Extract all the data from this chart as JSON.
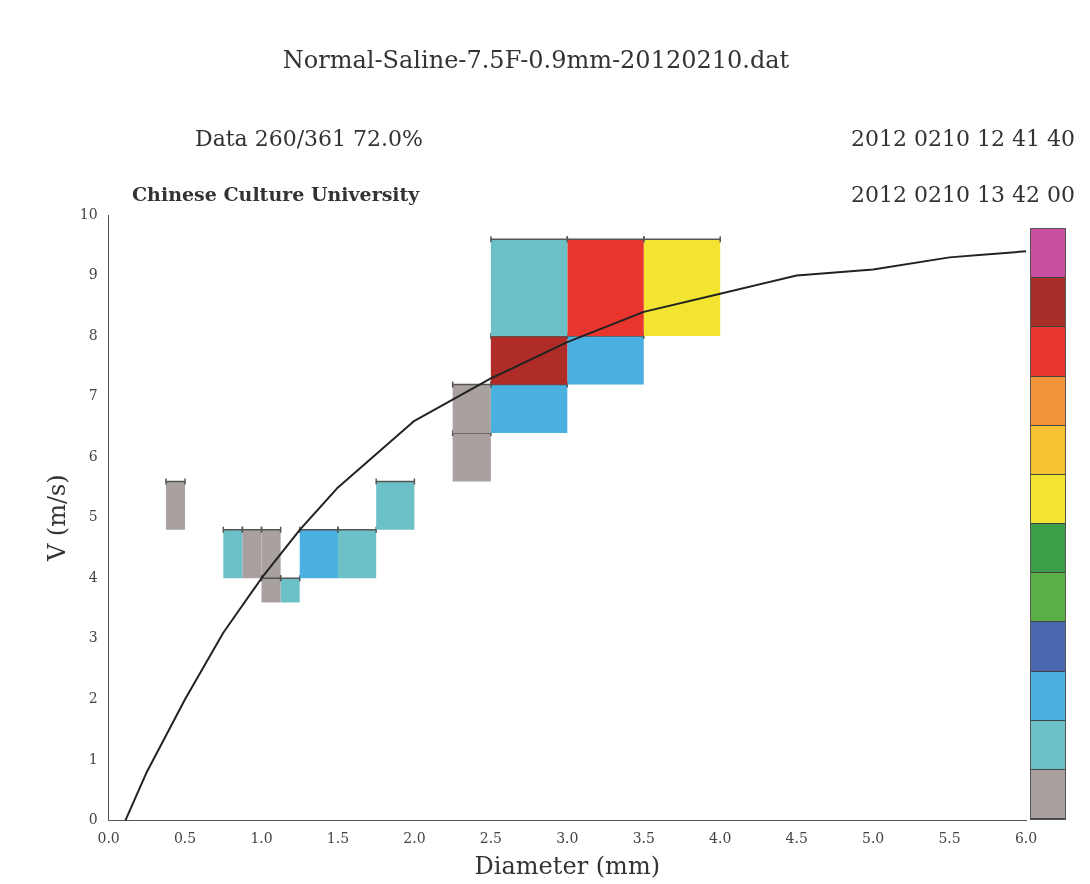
{
  "chart_data": {
    "type": "line",
    "title": "Normal-Saline-7.5F-0.9mm-20120210.dat",
    "xlabel": "Diameter (mm)",
    "ylabel": "V (m/s)",
    "annotations": [
      "Data 260/361 72.0%",
      "2012 0210 12 41 40",
      "Chinese Culture University",
      "2012 0210 13 42 00"
    ],
    "xlim": [
      0,
      6
    ],
    "ylim": [
      0,
      10
    ],
    "xticks": [
      {
        "value": 0,
        "label": "0.0"
      },
      {
        "value": 0.5,
        "label": "0.5"
      },
      {
        "value": 1,
        "label": "1.0"
      },
      {
        "value": 1.5,
        "label": "1.5"
      },
      {
        "value": 2,
        "label": "2.0"
      },
      {
        "value": 2.5,
        "label": "2.5"
      },
      {
        "value": 3,
        "label": "3.0"
      },
      {
        "value": 3.5,
        "label": "3.5"
      },
      {
        "value": 4,
        "label": "4.0"
      },
      {
        "value": 4.5,
        "label": "4.5"
      },
      {
        "value": 5,
        "label": "5.0"
      },
      {
        "value": 5.5,
        "label": "5.5"
      },
      {
        "value": 6,
        "label": "6.0"
      }
    ],
    "yticks": [
      0,
      1,
      2,
      3,
      4,
      5,
      6,
      7,
      8,
      9,
      10
    ],
    "legend": false,
    "series": [
      {
        "color": "#222222",
        "x": [
          0.11,
          0.25,
          0.5,
          0.75,
          1,
          1.25,
          1.5,
          2,
          2.5,
          3,
          3.5,
          4,
          4.5,
          5,
          5.5,
          6
        ],
        "values": [
          0,
          0.8,
          2,
          3.1,
          4,
          4.8,
          5.5,
          6.6,
          7.3,
          7.9,
          8.4,
          8.7,
          9,
          9.1,
          9.3,
          9.4
        ]
      },
      {
        "type": "bar",
        "x": [
          0.4375,
          0.8125,
          0.9375,
          1.0625,
          1.1875,
          1.375,
          1.625,
          1.875,
          2.375,
          2.75,
          3.25,
          3.75
        ],
        "base": [
          4.8,
          4,
          4,
          4,
          3.6,
          4,
          4,
          4.8,
          5.6,
          6.4,
          7.2,
          8
        ],
        "values": [
          0.8,
          0.8,
          0.8,
          0.8,
          0.4,
          0.8,
          0.8,
          0.8,
          0.8,
          0.8,
          0.8,
          1.6
        ],
        "xerrors": [
          [
            0.375,
            0.5
          ],
          [
            0.75,
            0.875
          ],
          [
            0.875,
            1
          ],
          [
            1,
            1.125
          ],
          [
            1.125,
            1.25
          ],
          [
            1.25,
            1.5
          ],
          [
            1.5,
            1.75
          ],
          [
            1.75,
            2
          ],
          [
            2.25,
            2.5
          ],
          [
            2.5,
            3
          ],
          [
            3,
            3.5
          ],
          [
            3.5,
            4
          ]
        ],
        "colors": [
          "#a9a1a0",
          "#6cc0c8",
          "#a9a1a0",
          "#a9a1a0",
          "#6cc0c8",
          "#4ab0e0",
          "#6cc0c8",
          "#6cc0c8",
          "#a9a1a0",
          "#4ab0e0",
          "#4ab0e0",
          "#f2e431"
        ]
      },
      {
        "type": "bar",
        "x": [
          1.0625,
          2.375,
          2.75,
          3.25
        ],
        "base": [
          3.6,
          6.4,
          7.2,
          8
        ],
        "values": [
          0.4,
          0.8,
          0.8,
          1.6
        ],
        "xerrors": [
          [
            1,
            1.125
          ],
          [
            2.25,
            2.5
          ],
          [
            2.5,
            3
          ],
          [
            3,
            3.5
          ]
        ],
        "colors": [
          "#a9a1a0",
          "#a9a1a0",
          "#b02c28",
          "#e8352e"
        ]
      },
      {
        "type": "bar",
        "x": [
          2.75
        ],
        "base": [
          8
        ],
        "values": [
          1.6
        ],
        "xerrors": [
          [
            2.5,
            3
          ]
        ],
        "colors": [
          "#6cc0c8"
        ]
      }
    ]
  }
}
